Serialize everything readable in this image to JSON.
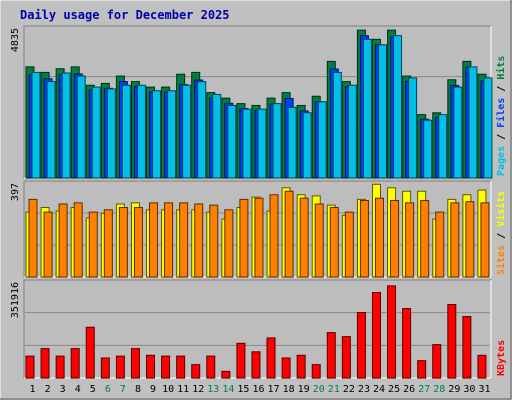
{
  "title": "Daily usage for December 2025",
  "colors": {
    "background": "#c0c0c0",
    "plot_bg": "#bdbdbd",
    "title_text": "#0000b0",
    "hits": "#008040",
    "files": "#0040ff",
    "pages": "#00c0e8",
    "visits": "#ffff00",
    "sites": "#ff8000",
    "kbytes": "#ff0000",
    "weekend_label": "#008040",
    "weekday_label": "#000000"
  },
  "chart_data": [
    {
      "type": "bar",
      "panel": "hits-files-pages",
      "ymax_label": "4835",
      "ymax": 4835,
      "series_label_parts": [
        "Pages",
        "Files",
        "Hits"
      ],
      "categories": [
        "1",
        "2",
        "3",
        "4",
        "5",
        "6",
        "7",
        "8",
        "9",
        "10",
        "11",
        "12",
        "13",
        "14",
        "15",
        "16",
        "17",
        "18",
        "19",
        "20",
        "21",
        "22",
        "23",
        "24",
        "25",
        "26",
        "27",
        "28",
        "29",
        "30",
        "31"
      ],
      "series": [
        {
          "name": "Hits",
          "values": [
            3630,
            3450,
            3570,
            3630,
            3030,
            3090,
            3330,
            3150,
            2970,
            2970,
            3390,
            3450,
            2790,
            2610,
            2430,
            2370,
            2610,
            2790,
            2370,
            2670,
            3810,
            3150,
            4830,
            4530,
            4830,
            3330,
            2070,
            2130,
            3210,
            3810,
            3390
          ]
        },
        {
          "name": "Files",
          "values": [
            3370,
            3240,
            3380,
            3400,
            2870,
            2930,
            3150,
            2980,
            2800,
            2800,
            3050,
            3200,
            2610,
            2440,
            2270,
            2210,
            2420,
            2600,
            2190,
            2490,
            3560,
            2980,
            4650,
            4350,
            4600,
            3160,
            1920,
            1980,
            3020,
            3620,
            3170
          ]
        },
        {
          "name": "Pages",
          "values": [
            3450,
            3150,
            3430,
            3330,
            2970,
            2910,
            3030,
            3030,
            2850,
            2850,
            3030,
            3150,
            2730,
            2370,
            2250,
            2250,
            2430,
            2310,
            2130,
            2490,
            3450,
            3030,
            4530,
            4350,
            4650,
            3270,
            1890,
            2070,
            2970,
            3630,
            3270
          ]
        }
      ]
    },
    {
      "type": "bar",
      "panel": "sites-visits",
      "ymax_label": "397",
      "ymax": 397,
      "series_label_parts": [
        "Sites",
        "Visits"
      ],
      "categories": [
        "1",
        "2",
        "3",
        "4",
        "5",
        "6",
        "7",
        "8",
        "9",
        "10",
        "11",
        "12",
        "13",
        "14",
        "15",
        "16",
        "17",
        "18",
        "19",
        "20",
        "21",
        "22",
        "23",
        "24",
        "25",
        "26",
        "27",
        "28",
        "29",
        "30",
        "31"
      ],
      "series": [
        {
          "name": "Visits",
          "values": [
            280,
            300,
            285,
            300,
            255,
            275,
            315,
            320,
            290,
            290,
            290,
            290,
            280,
            250,
            300,
            345,
            285,
            385,
            355,
            350,
            310,
            265,
            335,
            400,
            385,
            370,
            370,
            250,
            335,
            355,
            375
          ]
        },
        {
          "name": "Sites",
          "values": [
            335,
            280,
            315,
            320,
            280,
            290,
            300,
            300,
            320,
            320,
            320,
            315,
            310,
            290,
            335,
            340,
            355,
            370,
            340,
            315,
            300,
            280,
            330,
            340,
            330,
            320,
            330,
            280,
            320,
            325,
            320
          ]
        }
      ]
    },
    {
      "type": "bar",
      "panel": "kbytes",
      "ymax_label": "351916",
      "ymax": 351916,
      "series_label_parts": [
        "KBytes"
      ],
      "categories": [
        "1",
        "2",
        "3",
        "4",
        "5",
        "6",
        "7",
        "8",
        "9",
        "10",
        "11",
        "12",
        "13",
        "14",
        "15",
        "16",
        "17",
        "18",
        "19",
        "20",
        "21",
        "22",
        "23",
        "24",
        "25",
        "26",
        "27",
        "28",
        "29",
        "30",
        "31"
      ],
      "series": [
        {
          "name": "KBytes",
          "values": [
            82000,
            110000,
            82000,
            110000,
            190000,
            75000,
            82000,
            110000,
            85000,
            82000,
            82000,
            50000,
            82000,
            25000,
            130000,
            98000,
            150000,
            75000,
            85000,
            50000,
            170000,
            155000,
            245000,
            320000,
            345000,
            260000,
            65000,
            125000,
            275000,
            230000,
            85000
          ]
        }
      ]
    }
  ],
  "weekend_days": [
    "6",
    "7",
    "13",
    "14",
    "20",
    "21",
    "27",
    "28"
  ]
}
